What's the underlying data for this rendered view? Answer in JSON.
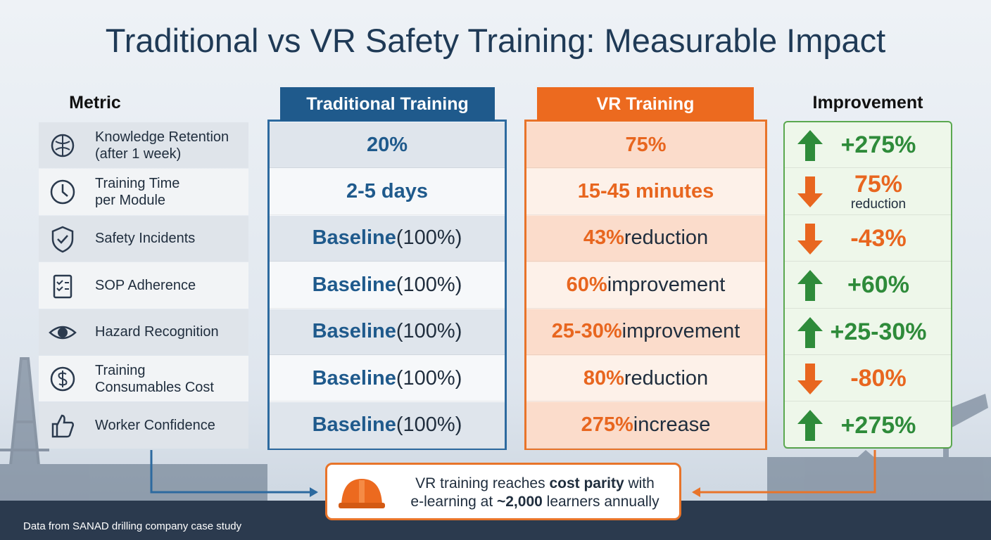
{
  "title": "Traditional vs VR Safety Training: Measurable Impact",
  "headers": {
    "metric": "Metric",
    "traditional": "Traditional Training",
    "vr": "VR Training",
    "improvement": "Improvement"
  },
  "rows": [
    {
      "metric": [
        "Knowledge Retention",
        "(after 1 week)"
      ],
      "traditional": {
        "lead": "20%"
      },
      "vr": {
        "lead": "75%"
      },
      "improvement": {
        "value": "+275%",
        "arrow": "up"
      }
    },
    {
      "metric": [
        "Training Time",
        "per Module"
      ],
      "traditional": {
        "lead": "2-5 days"
      },
      "vr": {
        "lead": "15-45 minutes"
      },
      "improvement": {
        "value": "75%",
        "note": "reduction",
        "arrow": "down"
      }
    },
    {
      "metric": [
        "Safety Incidents"
      ],
      "traditional": {
        "lead": "Baseline",
        "rest": "(100%)"
      },
      "vr": {
        "lead": "43%",
        "rest": "reduction"
      },
      "improvement": {
        "value": "-43%",
        "arrow": "down"
      }
    },
    {
      "metric": [
        "SOP Adherence"
      ],
      "traditional": {
        "lead": "Baseline",
        "rest": "(100%)"
      },
      "vr": {
        "lead": "60%",
        "rest": "improvement"
      },
      "improvement": {
        "value": "+60%",
        "arrow": "up"
      }
    },
    {
      "metric": [
        "Hazard Recognition"
      ],
      "traditional": {
        "lead": "Baseline",
        "rest": "(100%)"
      },
      "vr": {
        "lead": "25-30%",
        "rest": "improvement"
      },
      "improvement": {
        "value": "+25-30%",
        "arrow": "up"
      }
    },
    {
      "metric": [
        "Training",
        "Consumables Cost"
      ],
      "traditional": {
        "lead": "Baseline",
        "rest": "(100%)"
      },
      "vr": {
        "lead": "80%",
        "rest": "reduction"
      },
      "improvement": {
        "value": "-80%",
        "arrow": "down"
      }
    },
    {
      "metric": [
        "Worker Confidence"
      ],
      "traditional": {
        "lead": "Baseline",
        "rest": "(100%)"
      },
      "vr": {
        "lead": "275%",
        "rest": "increase"
      },
      "improvement": {
        "value": "+275%",
        "arrow": "up"
      }
    }
  ],
  "callout": [
    [
      {
        "text": "VR training reaches "
      },
      {
        "text": "cost parity",
        "bold": true
      },
      {
        "text": " with"
      }
    ],
    [
      {
        "text": "e-learning at "
      },
      {
        "text": "~2,000",
        "bold": true
      },
      {
        "text": " learners annually"
      }
    ]
  ],
  "footer": "Data from SANAD drilling company case study"
}
